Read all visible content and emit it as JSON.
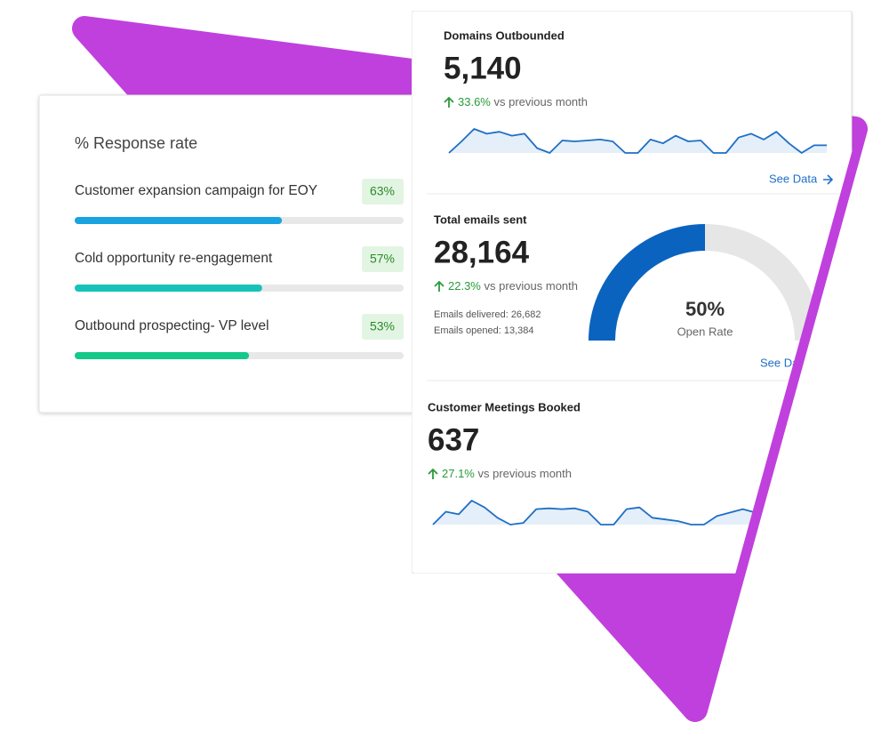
{
  "response_card": {
    "title": "% Response rate",
    "campaigns": [
      {
        "name": "Customer expansion campaign for EOY",
        "rate": {
          "value": 63,
          "label": "63%"
        }
      },
      {
        "name": "Cold opportunity re-engagement",
        "rate": {
          "value": 57,
          "label": "57%"
        }
      },
      {
        "name": "Outbound prospecting- VP level",
        "rate": {
          "value": 53,
          "label": "53%"
        }
      }
    ]
  },
  "metrics": [
    {
      "title": "Domains Outbounded",
      "value": "5,140",
      "change": "33.6%",
      "change_text": "vs previous month",
      "link": "See Data",
      "trend": [
        0,
        12,
        25,
        20,
        22,
        18,
        20,
        5,
        0,
        13,
        12,
        13,
        14,
        12,
        0,
        0,
        14,
        10,
        18,
        12,
        13,
        0,
        0,
        16,
        20,
        14,
        22,
        10,
        0,
        8,
        8
      ]
    },
    {
      "title": "Total emails sent",
      "value": "28,164",
      "change": "22.3%",
      "change_text": "vs previous month",
      "details": [
        "Emails delivered: 26,682",
        "Emails opened: 13,384"
      ],
      "gauge": {
        "value": 50,
        "label": "50%",
        "caption": "Open Rate"
      },
      "link": "See Data"
    },
    {
      "title": "Customer Meetings Booked",
      "value": "637",
      "change": "27.1%",
      "change_text": "vs previous month",
      "trend": [
        0,
        15,
        12,
        28,
        20,
        8,
        0,
        2,
        18,
        19,
        18,
        19,
        15,
        0,
        0,
        18,
        20,
        8,
        6,
        4,
        0,
        0,
        10,
        14,
        18,
        14
      ]
    }
  ]
}
